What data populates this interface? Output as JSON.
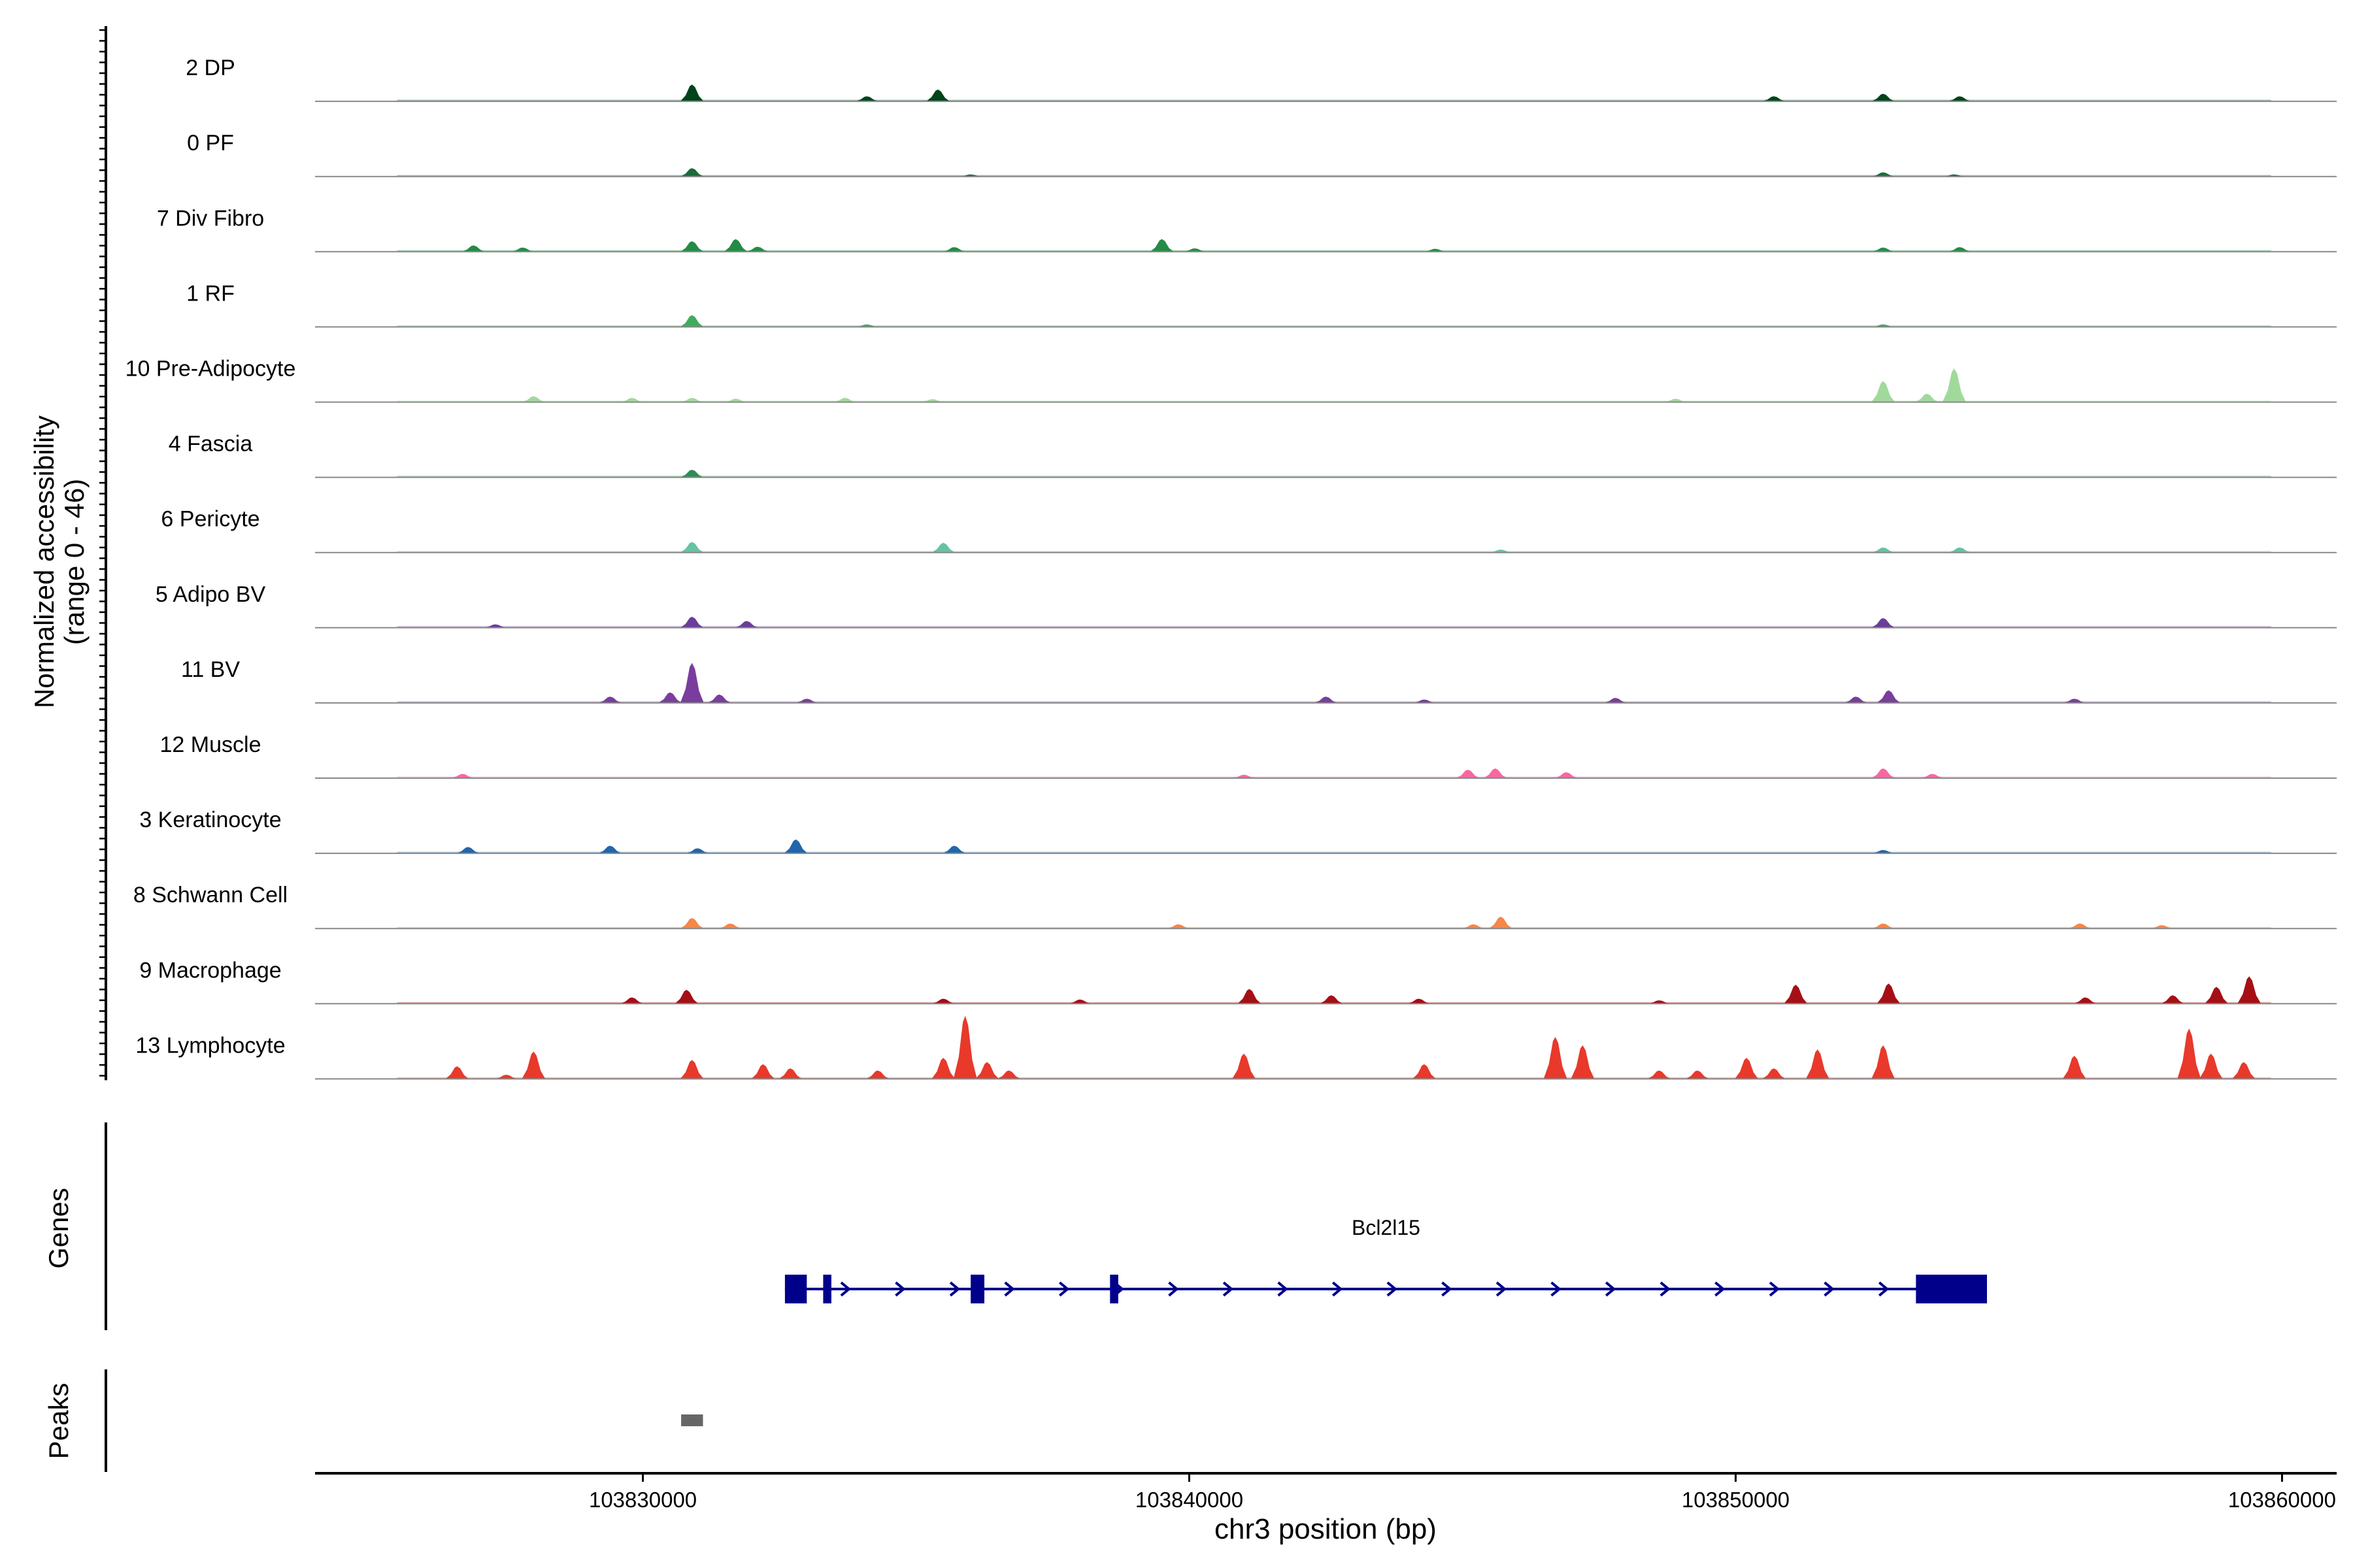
{
  "chart_data": {
    "type": "area",
    "title": "",
    "ylabel_line1": "Normalized accessibility",
    "ylabel_line2": "(range 0 - 46)",
    "y_range": [
      0,
      46
    ],
    "xlabel": "chr3 position (bp)",
    "chromosome": "chr3",
    "xlim": [
      103824000,
      103861000
    ],
    "x_ticks": [
      103830000,
      103840000,
      103850000,
      103860000
    ],
    "x_tick_labels": [
      "103830000",
      "103840000",
      "103850000",
      "103860000"
    ],
    "tracks": [
      {
        "name": "2 DP",
        "color": "#00441b",
        "peaks": [
          [
            103830900,
            4
          ],
          [
            103834100,
            1.2
          ],
          [
            103835400,
            2.8
          ],
          [
            103850700,
            1.2
          ],
          [
            103852700,
            1.8
          ],
          [
            103854100,
            1.2
          ]
        ]
      },
      {
        "name": "0 PF",
        "color": "#1b6b3a",
        "peaks": [
          [
            103830900,
            2
          ],
          [
            103836000,
            0.5
          ],
          [
            103852700,
            1
          ],
          [
            103854000,
            0.5
          ]
        ]
      },
      {
        "name": "7 Div Fibro",
        "color": "#238b45",
        "peaks": [
          [
            103826900,
            1.5
          ],
          [
            103827800,
            1
          ],
          [
            103830900,
            2.5
          ],
          [
            103831700,
            3
          ],
          [
            103832100,
            1.2
          ],
          [
            103835700,
            1.1
          ],
          [
            103839500,
            3
          ],
          [
            103840100,
            0.8
          ],
          [
            103844500,
            0.7
          ],
          [
            103852700,
            1
          ],
          [
            103854100,
            1.1
          ]
        ]
      },
      {
        "name": "1 RF",
        "color": "#41ab5d",
        "peaks": [
          [
            103830900,
            2.8
          ],
          [
            103834100,
            0.6
          ],
          [
            103852700,
            0.6
          ]
        ]
      },
      {
        "name": "10 Pre-Adipocyte",
        "color": "#a1d99b",
        "peaks": [
          [
            103828000,
            1.4
          ],
          [
            103829800,
            1
          ],
          [
            103830900,
            1
          ],
          [
            103831700,
            0.8
          ],
          [
            103833700,
            1
          ],
          [
            103835300,
            0.7
          ],
          [
            103848900,
            0.8
          ],
          [
            103852700,
            5
          ],
          [
            103853500,
            2
          ],
          [
            103854000,
            8
          ]
        ]
      },
      {
        "name": "4 Fascia",
        "color": "#2e8b57",
        "peaks": [
          [
            103830900,
            1.8
          ]
        ]
      },
      {
        "name": "6 Pericyte",
        "color": "#66c2a4",
        "peaks": [
          [
            103830900,
            2.5
          ],
          [
            103835500,
            2.3
          ],
          [
            103845700,
            0.7
          ],
          [
            103852700,
            1.2
          ],
          [
            103854100,
            1.2
          ]
        ]
      },
      {
        "name": "5 Adipo BV",
        "color": "#6a3d9a",
        "peaks": [
          [
            103827300,
            0.8
          ],
          [
            103830900,
            2.6
          ],
          [
            103831900,
            1.6
          ],
          [
            103852700,
            2.3
          ]
        ]
      },
      {
        "name": "11 BV",
        "color": "#7a3d9e",
        "peaks": [
          [
            103829400,
            1.5
          ],
          [
            103830500,
            2.5
          ],
          [
            103830900,
            9.5
          ],
          [
            103831400,
            2
          ],
          [
            103833000,
            1
          ],
          [
            103842500,
            1.5
          ],
          [
            103844300,
            0.8
          ],
          [
            103847800,
            1.2
          ],
          [
            103852200,
            1.5
          ],
          [
            103852800,
            3
          ],
          [
            103856200,
            1
          ]
        ]
      },
      {
        "name": "12 Muscle",
        "color": "#f768a1",
        "peaks": [
          [
            103826700,
            1
          ],
          [
            103841000,
            0.8
          ],
          [
            103845100,
            2
          ],
          [
            103845600,
            2.3
          ],
          [
            103846900,
            1.4
          ],
          [
            103852700,
            2.3
          ],
          [
            103853600,
            1
          ]
        ]
      },
      {
        "name": "3 Keratinocyte",
        "color": "#2166ac",
        "peaks": [
          [
            103826800,
            1.5
          ],
          [
            103829400,
            1.8
          ],
          [
            103831000,
            1.2
          ],
          [
            103832800,
            3.3
          ],
          [
            103835700,
            1.8
          ],
          [
            103852700,
            0.8
          ]
        ]
      },
      {
        "name": "8 Schwann Cell",
        "color": "#f4874b",
        "peaks": [
          [
            103830900,
            2.5
          ],
          [
            103831600,
            1.2
          ],
          [
            103839800,
            1
          ],
          [
            103845200,
            1
          ],
          [
            103845700,
            2.8
          ],
          [
            103852700,
            1.2
          ],
          [
            103856300,
            1.2
          ],
          [
            103857800,
            0.8
          ]
        ]
      },
      {
        "name": "9 Macrophage",
        "color": "#a50f15",
        "peaks": [
          [
            103829800,
            1.5
          ],
          [
            103830800,
            3.3
          ],
          [
            103835500,
            1.2
          ],
          [
            103838000,
            1
          ],
          [
            103841100,
            3.5
          ],
          [
            103842600,
            2
          ],
          [
            103844200,
            1.2
          ],
          [
            103848600,
            0.8
          ],
          [
            103851100,
            4.5
          ],
          [
            103852800,
            4.8
          ],
          [
            103856400,
            1.5
          ],
          [
            103858000,
            2
          ],
          [
            103858800,
            4
          ],
          [
            103859400,
            6.5
          ]
        ]
      },
      {
        "name": "13 Lymphocyte",
        "color": "#e8392b",
        "peaks": [
          [
            103826600,
            3
          ],
          [
            103827500,
            1
          ],
          [
            103828000,
            6.5
          ],
          [
            103830900,
            4.5
          ],
          [
            103832200,
            3.5
          ],
          [
            103832700,
            2.5
          ],
          [
            103834300,
            2
          ],
          [
            103835500,
            5
          ],
          [
            103835900,
            15
          ],
          [
            103836300,
            4
          ],
          [
            103836700,
            2
          ],
          [
            103841000,
            6
          ],
          [
            103844300,
            3.5
          ],
          [
            103846700,
            10
          ],
          [
            103847200,
            8
          ],
          [
            103848600,
            2
          ],
          [
            103849300,
            2
          ],
          [
            103850200,
            5
          ],
          [
            103850700,
            2.5
          ],
          [
            103851500,
            7
          ],
          [
            103852700,
            8
          ],
          [
            103856200,
            5.5
          ],
          [
            103858300,
            12
          ],
          [
            103858700,
            6
          ],
          [
            103859300,
            4
          ]
        ]
      }
    ],
    "genes_label": "Genes",
    "gene": {
      "name": "Bcl2l15",
      "color": "#00008b",
      "start": 103832600,
      "end": 103854600,
      "strand": "+",
      "exons": [
        [
          103832600,
          103833000
        ],
        [
          103833300,
          103833450
        ],
        [
          103836000,
          103836250
        ],
        [
          103838550,
          103838700
        ],
        [
          103853300,
          103854600
        ]
      ]
    },
    "peaks_label": "Peaks",
    "peak_regions": [
      [
        103830700,
        103831100
      ]
    ],
    "peak_color": "#666666"
  }
}
